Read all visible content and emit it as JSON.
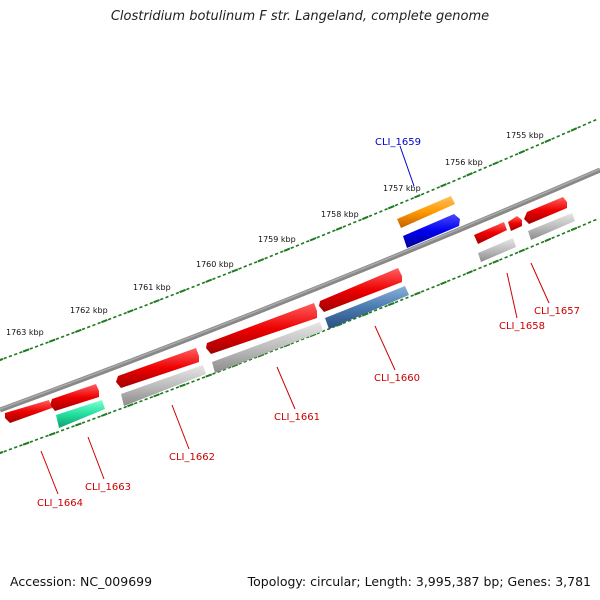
{
  "title": "Clostridium botulinum F str. Langeland, complete genome",
  "footer": {
    "accession": "Accession: NC_009699",
    "stats": "Topology: circular; Length: 3,995,387 bp; Genes: 3,781"
  },
  "colors": {
    "backbone": "#777777",
    "tick": "#1f7a1f",
    "gene_red": "#ee0000",
    "gene_gray": "#bbbbbb",
    "gene_orange": "#ff9900",
    "gene_blue": "#0000ee",
    "gene_steelblue": "#4a7ab0",
    "gene_teal": "#22e0a0",
    "label_red": "#cc0000",
    "label_blue": "#0000cc"
  },
  "kbp_labels": [
    "1755 kbp",
    "1756 kbp",
    "1757 kbp",
    "1758 kbp",
    "1759 kbp",
    "1760 kbp",
    "1761 kbp",
    "1762 kbp",
    "1763 kbp"
  ],
  "gene_labels": [
    {
      "name": "CLI_1657",
      "color": "red"
    },
    {
      "name": "CLI_1658",
      "color": "red"
    },
    {
      "name": "CLI_1659",
      "color": "blue"
    },
    {
      "name": "CLI_1660",
      "color": "red"
    },
    {
      "name": "CLI_1661",
      "color": "red"
    },
    {
      "name": "CLI_1662",
      "color": "red"
    },
    {
      "name": "CLI_1663",
      "color": "red"
    },
    {
      "name": "CLI_1664",
      "color": "red"
    }
  ]
}
